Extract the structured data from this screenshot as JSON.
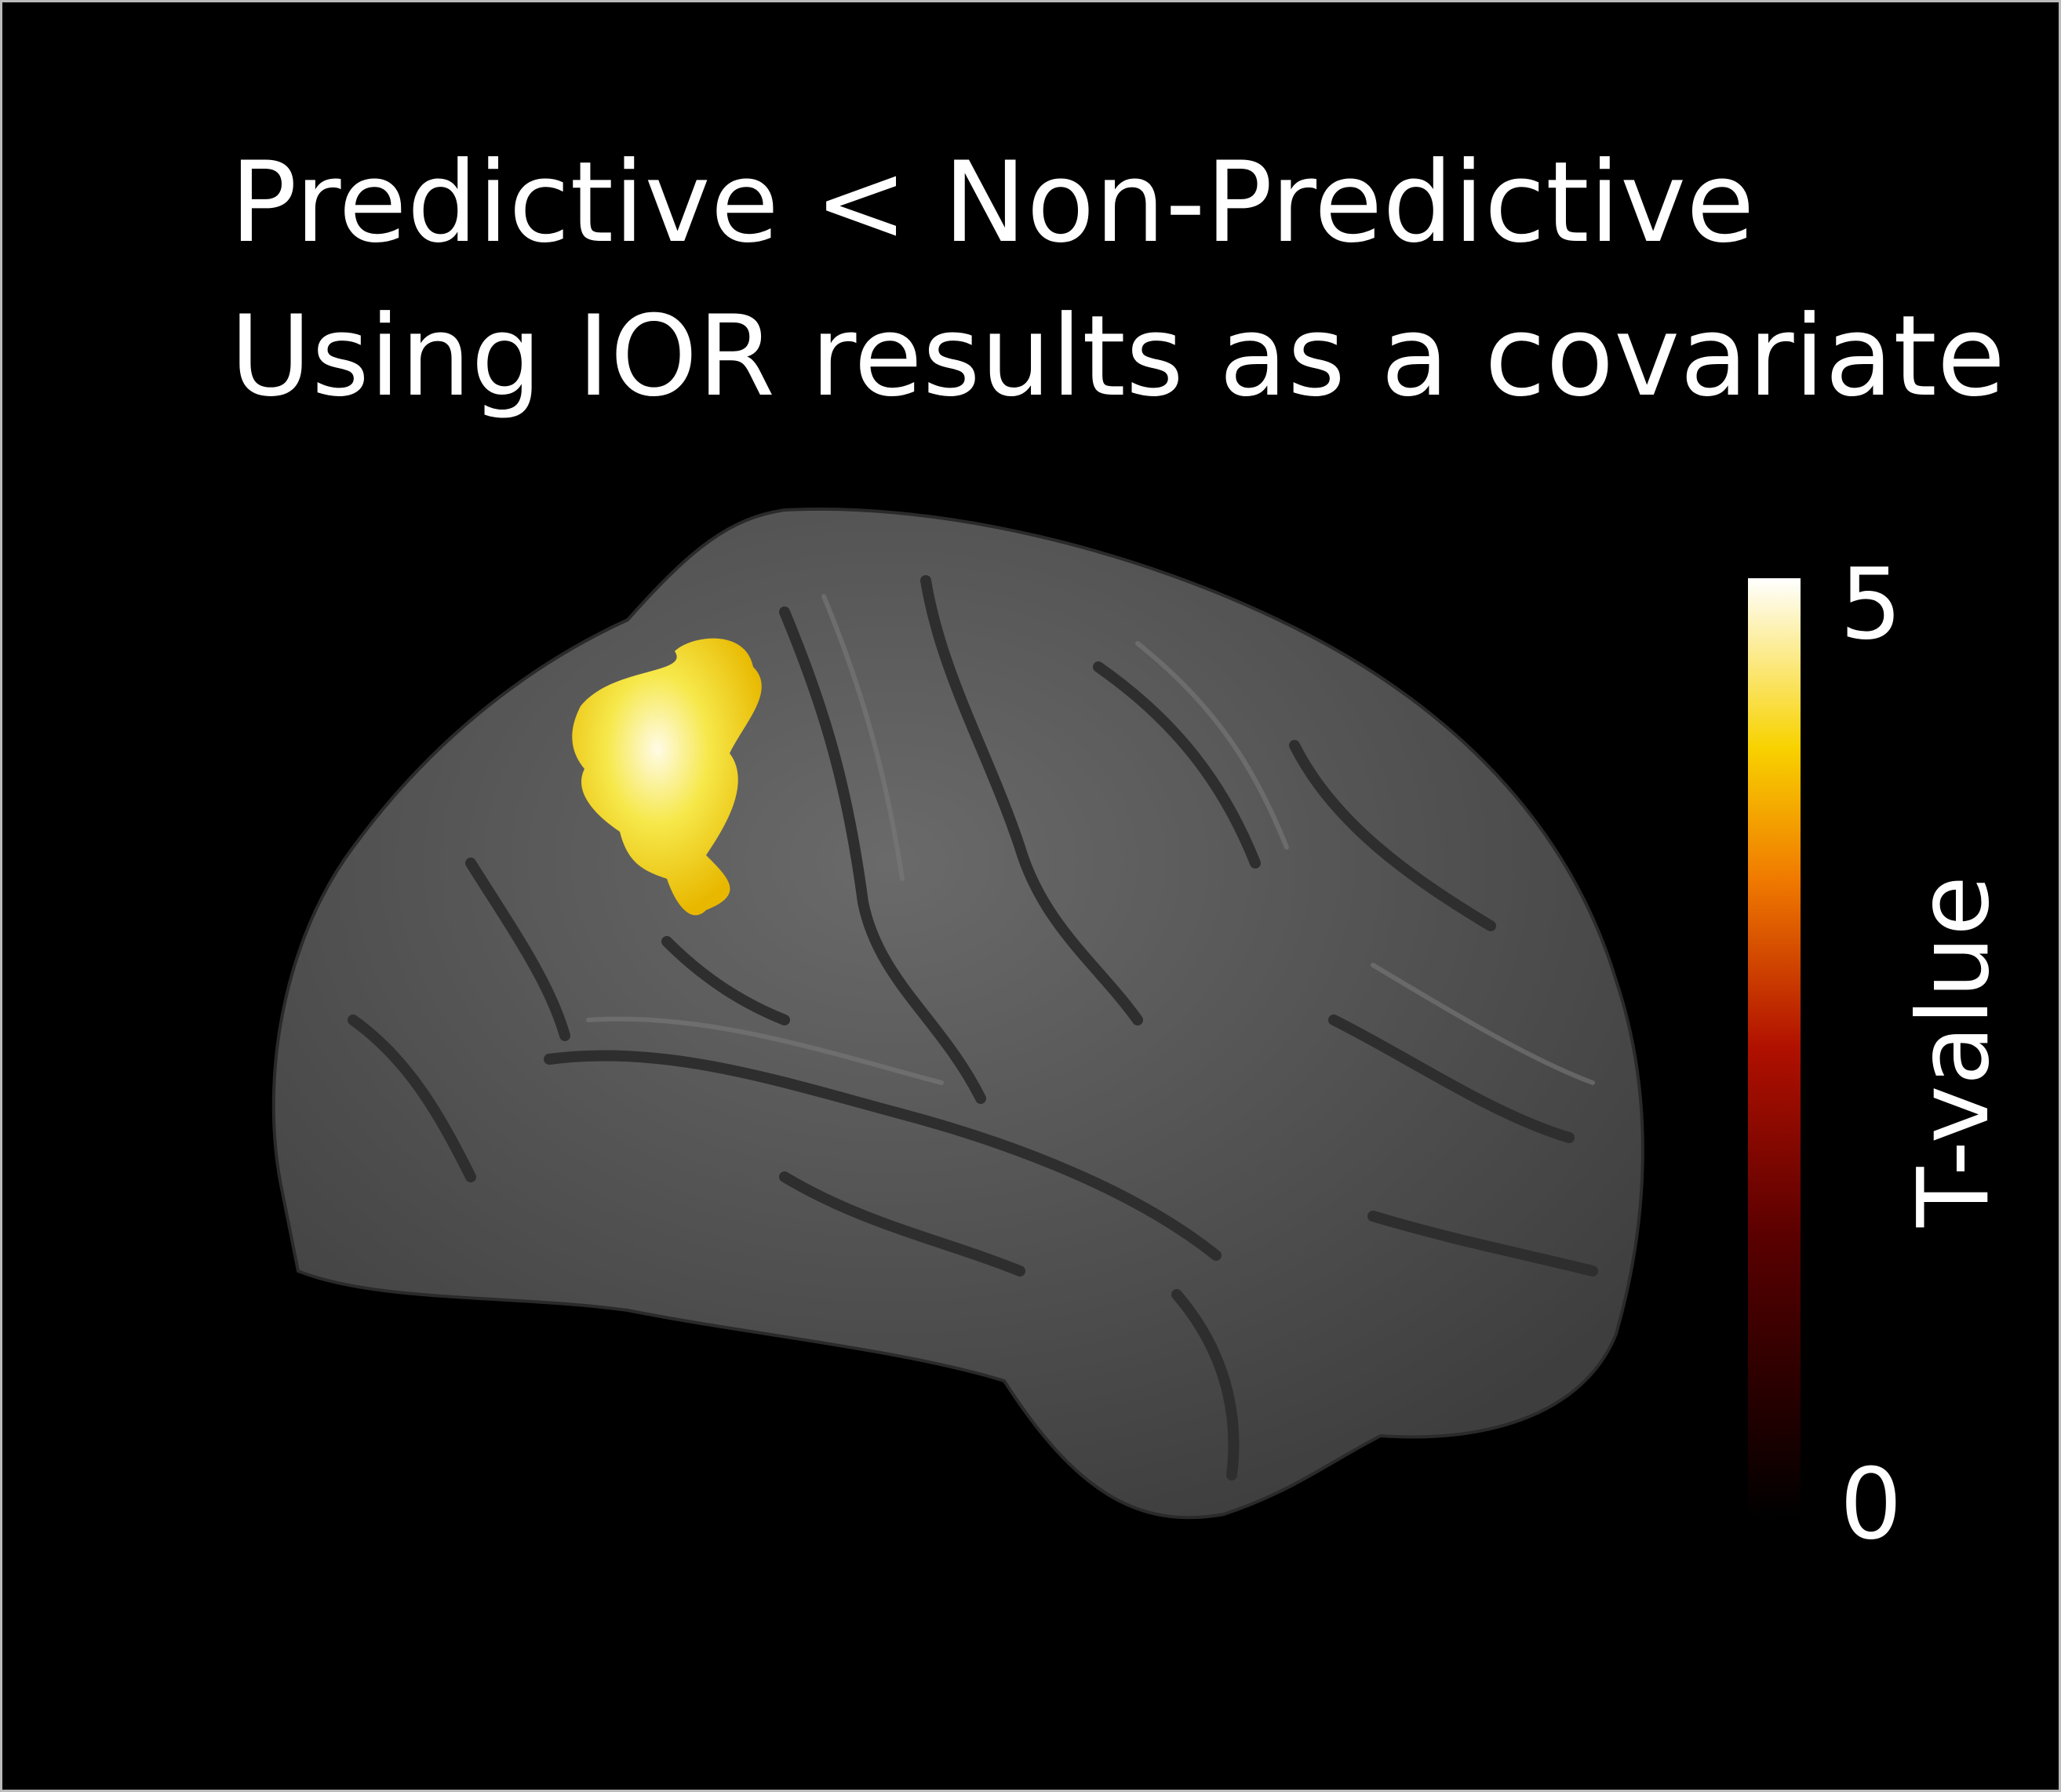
{
  "title": {
    "line1": "Predictive < Non-Predictive",
    "line2": "Using IOR results as a covariate"
  },
  "colorbar": {
    "label": "T-value",
    "range": [
      0,
      5
    ],
    "ticks": [
      0,
      5
    ]
  }
}
